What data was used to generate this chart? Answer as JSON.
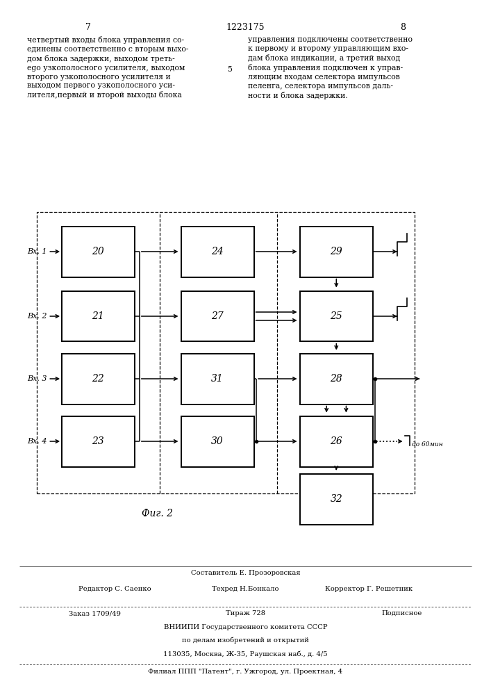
{
  "page_width": 7.07,
  "page_height": 10.0,
  "header_left_num": "7",
  "header_center_num": "1223175",
  "header_right_num": "8",
  "text_left": "четвертый входы блока управления со-\nединены соответственно с вторым выхо-\nдом блока задержки, выходом треть-\nego узкополосного усилителя, выходом\nвторого узкополосного усилителя и\nвыходом первого узкополосного уси-\nлителя,первый и второй выходы блока",
  "text_right": "управления подключены соответственно\nк первому и второму управляющим вхо-\nдам блока индикации, а третий выход\nблока управления подключен к управ-\nляющим входам селектора импульсов\nпеленга, селектора импульсов даль-\nности и блока задержки.",
  "num_5": "5",
  "fig_caption": "Фиг. 2",
  "footer_line1": "Составитель Е. Прозоровская",
  "footer_line2_left": "Редактор С. Саенко",
  "footer_line2_mid": "Техред Н.Бонкало",
  "footer_line2_right": "Корректор Г. Решетник",
  "footer_line3_left": "Заказ 1709/49",
  "footer_line3_mid": "Тираж 728",
  "footer_line3_right": "Подписное",
  "footer_line4": "ВНИИПИ Государственного комитета СССР",
  "footer_line5": "по делам изобретений и открытий",
  "footer_line6": "113035, Москва, Ж-35, Раушская наб., д. 4/5",
  "footer_line7": "Филиал ППП \"Патент\", г. Ужгород, ул. Проектная, 4",
  "box_labels": [
    "20",
    "21",
    "22",
    "23",
    "24",
    "27",
    "31",
    "30",
    "29",
    "25",
    "28",
    "26",
    "32"
  ]
}
